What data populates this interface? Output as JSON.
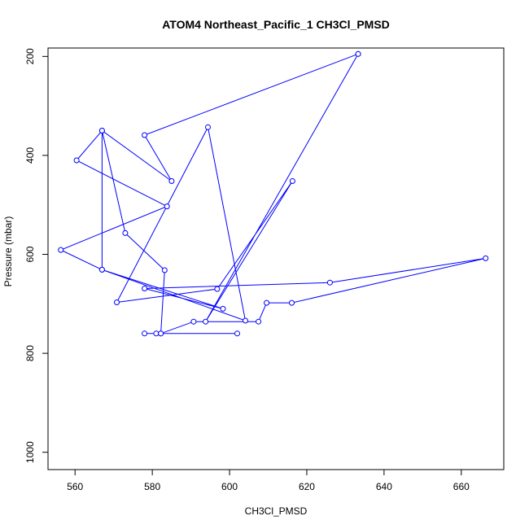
{
  "chart_data": {
    "type": "line",
    "title": "ATOM4 Northeast_Pacific_1 CH3Cl_PMSD",
    "xlabel": "CH3Cl_PMSD",
    "ylabel": "Pressure (mbar)",
    "xlim": [
      553,
      671
    ],
    "ylim": [
      1035,
      183
    ],
    "y_reversed": true,
    "grid": false,
    "x_ticks": [
      560,
      580,
      600,
      620,
      640,
      660
    ],
    "y_ticks": [
      200,
      400,
      600,
      800,
      1000
    ],
    "series": [
      {
        "color": "#0000ff",
        "marker": "open-circle",
        "points": [
          {
            "x": 633.3,
            "y": 195
          },
          {
            "x": 578,
            "y": 359
          },
          {
            "x": 585,
            "y": 452
          },
          {
            "x": 567,
            "y": 350
          },
          {
            "x": 560.4,
            "y": 410
          },
          {
            "x": 583.8,
            "y": 503
          },
          {
            "x": 556.3,
            "y": 591
          },
          {
            "x": 567,
            "y": 631
          },
          {
            "x": 567,
            "y": 350
          },
          {
            "x": 573,
            "y": 557
          },
          {
            "x": 583.2,
            "y": 632
          },
          {
            "x": 582.2,
            "y": 760
          },
          {
            "x": 602,
            "y": 760
          },
          {
            "x": 578,
            "y": 760
          },
          {
            "x": 581,
            "y": 760
          },
          {
            "x": 582.2,
            "y": 760
          },
          {
            "x": 590.7,
            "y": 736
          },
          {
            "x": 607.5,
            "y": 736
          },
          {
            "x": 609.6,
            "y": 698
          },
          {
            "x": 616.1,
            "y": 698
          },
          {
            "x": 666.3,
            "y": 608
          },
          {
            "x": 626,
            "y": 657
          },
          {
            "x": 578,
            "y": 669
          },
          {
            "x": 598.3,
            "y": 710
          },
          {
            "x": 567,
            "y": 631
          },
          {
            "x": 604.1,
            "y": 734
          },
          {
            "x": 594.4,
            "y": 343
          },
          {
            "x": 570.8,
            "y": 697
          },
          {
            "x": 596.8,
            "y": 670
          },
          {
            "x": 616.3,
            "y": 452
          },
          {
            "x": 593.8,
            "y": 736
          },
          {
            "x": 633.3,
            "y": 195
          }
        ]
      }
    ]
  }
}
